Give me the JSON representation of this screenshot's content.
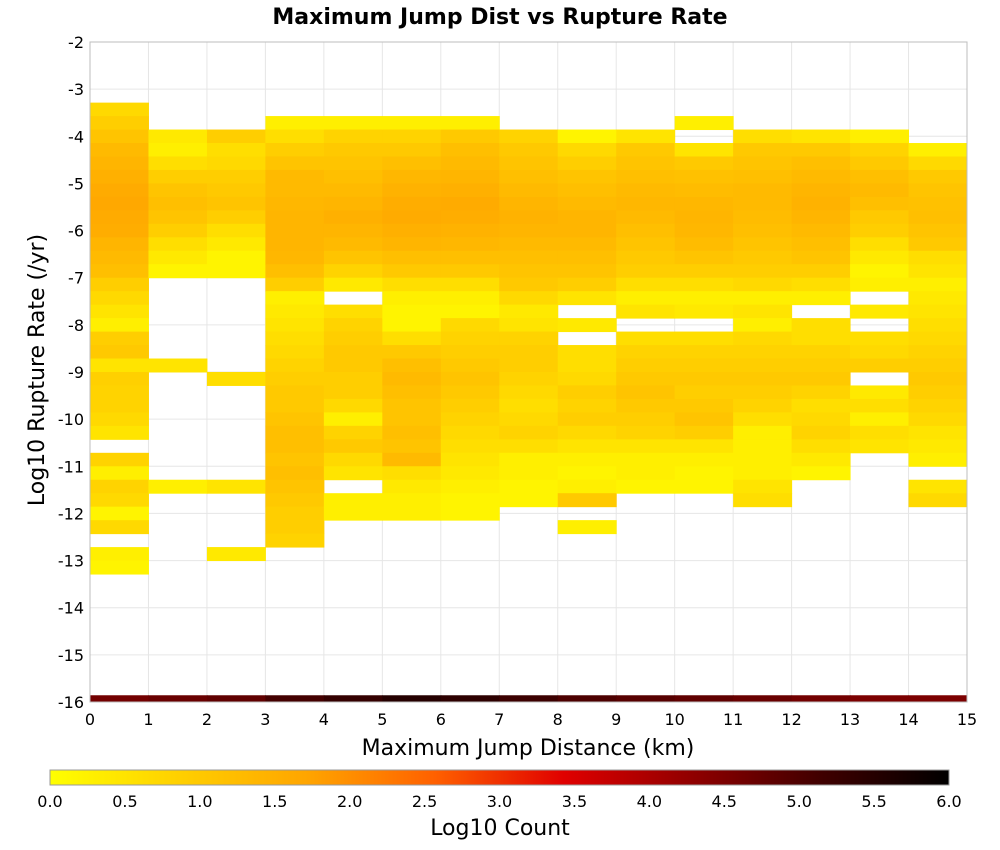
{
  "chart_data": {
    "type": "heatmap",
    "title": "Maximum Jump Dist vs Rupture Rate",
    "xlabel": "Maximum Jump Distance (km)",
    "ylabel": "Log10 Rupture Rate (/yr)",
    "xlim": [
      0,
      15
    ],
    "ylim": [
      -16,
      -2
    ],
    "x_ticks": [
      0,
      1,
      2,
      3,
      4,
      5,
      6,
      7,
      8,
      9,
      10,
      11,
      12,
      13,
      14,
      15
    ],
    "y_ticks": [
      -2,
      -3,
      -4,
      -5,
      -6,
      -7,
      -8,
      -9,
      -10,
      -11,
      -12,
      -13,
      -14,
      -15,
      -16
    ],
    "x_bin_width": 1,
    "y_bin_height": 0.2857,
    "colorbar": {
      "label": "Log10 Count",
      "min": 0.0,
      "max": 6.0,
      "ticks": [
        "0.0",
        "0.5",
        "1.0",
        "1.5",
        "2.0",
        "2.5",
        "3.0",
        "3.5",
        "4.0",
        "4.5",
        "5.0",
        "5.5",
        "6.0"
      ],
      "colors": [
        "#ffff00",
        "#ffd000",
        "#ffa500",
        "#ff6000",
        "#e00000",
        "#900000",
        "#400000",
        "#000000"
      ]
    },
    "columns": [
      {
        "x": 0,
        "from": -3.286,
        "values": [
          0.7,
          0.9,
          1.1,
          1.3,
          1.4,
          1.5,
          1.6,
          1.65,
          1.6,
          1.55,
          1.4,
          1.3,
          1.2,
          0.9,
          0.7,
          0.5,
          0.3,
          0.9,
          1.0,
          0.5,
          0.85,
          0.8,
          0.8,
          0.7,
          0.5,
          0,
          0.8,
          0.3,
          0.8,
          0.7,
          0.2,
          0.7,
          0,
          0.3
        ]
      },
      {
        "x": 0,
        "from": -13.0,
        "values": [
          0.2
        ]
      },
      {
        "x": 1,
        "from": -3.857,
        "values": [
          0.4,
          0.3,
          0.6,
          0.9,
          1.1,
          1.2,
          1.1,
          0.9,
          0.6,
          0.4,
          0.2,
          0,
          0,
          0,
          0,
          0,
          0,
          0.5,
          0,
          0,
          0,
          0,
          0,
          0,
          0,
          0,
          0.3
        ]
      },
      {
        "x": 2,
        "from": -3.857,
        "values": [
          0.9,
          0.6,
          0.7,
          0.9,
          1.0,
          1.1,
          0.9,
          0.6,
          0.4,
          0.2,
          0.2,
          0,
          0,
          0,
          0,
          0,
          0,
          0,
          0.6,
          0,
          0,
          0,
          0,
          0,
          0,
          0,
          0.5,
          0,
          0,
          0,
          0,
          0.4
        ]
      },
      {
        "x": 3,
        "from": -3.571,
        "values": [
          0.3,
          0.6,
          0.9,
          1.1,
          1.3,
          1.3,
          1.35,
          1.4,
          1.4,
          1.4,
          1.35,
          1.2,
          0.9,
          0.3,
          0.4,
          0.5,
          0.6,
          0.7,
          0.8,
          0.9,
          1.0,
          1.0,
          1.1,
          1.2,
          1.2,
          1.1,
          1.2,
          1.1,
          1.0,
          0.9,
          0.9,
          0.8
        ]
      },
      {
        "x": 4,
        "from": -3.571,
        "values": [
          0.3,
          0.8,
          1.0,
          1.1,
          1.2,
          1.3,
          1.4,
          1.5,
          1.4,
          1.3,
          1.1,
          0.8,
          0.4,
          0,
          0.6,
          0.8,
          0.9,
          1.0,
          1.0,
          0.9,
          0.9,
          0.7,
          0.3,
          0.8,
          1.0,
          0.7,
          0.5,
          0,
          0.3,
          0.3
        ]
      },
      {
        "x": 5,
        "from": -3.571,
        "values": [
          0.3,
          0.8,
          1.0,
          1.2,
          1.35,
          1.45,
          1.55,
          1.6,
          1.5,
          1.4,
          1.2,
          1.0,
          0.6,
          0.3,
          0.2,
          0.2,
          0.6,
          1.0,
          1.2,
          1.3,
          1.2,
          1.1,
          1.1,
          1.2,
          1.1,
          1.3,
          0.6,
          0.4,
          0.3,
          0.3
        ]
      },
      {
        "x": 6,
        "from": -3.571,
        "values": [
          0.3,
          1.0,
          1.2,
          1.3,
          1.4,
          1.5,
          1.6,
          1.55,
          1.45,
          1.35,
          1.2,
          1.0,
          0.6,
          0.3,
          0.2,
          0.7,
          0.8,
          0.9,
          1.0,
          1.1,
          1.0,
          0.9,
          0.8,
          0.7,
          0.6,
          0.5,
          0.4,
          0.3,
          0.2,
          0.2
        ]
      },
      {
        "x": 7,
        "from": -3.857,
        "values": [
          0.8,
          1.0,
          1.1,
          1.2,
          1.3,
          1.4,
          1.45,
          1.4,
          1.3,
          1.2,
          1.1,
          1.0,
          0.7,
          0.4,
          0.5,
          0.8,
          0.9,
          0.9,
          0.8,
          0.7,
          0.6,
          0.7,
          0.8,
          0.6,
          0.3,
          0.3,
          0.2,
          0.2
        ]
      },
      {
        "x": 8,
        "from": -3.857,
        "values": [
          0.2,
          0.7,
          0.9,
          1.1,
          1.2,
          1.3,
          1.4,
          1.4,
          1.3,
          1.2,
          1.1,
          0.9,
          0.5,
          0,
          0.4,
          0,
          0.6,
          0.6,
          0.7,
          0.9,
          0.8,
          0.9,
          0.7,
          0.5,
          0.3,
          0.2,
          0.3,
          1.0,
          0,
          0.3
        ]
      },
      {
        "x": 9,
        "from": -3.857,
        "values": [
          0.5,
          1.0,
          1.1,
          1.2,
          1.3,
          1.35,
          1.3,
          1.2,
          1.1,
          1.0,
          0.9,
          0.6,
          0.3,
          0.5,
          0,
          0.6,
          0.8,
          0.9,
          1.0,
          1.1,
          1.0,
          0.9,
          0.8,
          0.5,
          0.3,
          0.3,
          0.2
        ]
      },
      {
        "x": 10,
        "from": -3.571,
        "values": [
          0.3,
          0,
          0.5,
          1.0,
          1.15,
          1.25,
          1.35,
          1.4,
          1.35,
          1.25,
          1.1,
          0.9,
          0.6,
          0.3,
          0.4,
          0,
          0.6,
          0.8,
          0.9,
          1.0,
          0.9,
          1.0,
          1.1,
          0.9,
          0.5,
          0.3,
          0.2,
          0.2
        ]
      },
      {
        "x": 11,
        "from": -3.857,
        "values": [
          0.6,
          1.0,
          1.1,
          1.2,
          1.3,
          1.3,
          1.25,
          1.2,
          1.1,
          1.0,
          0.9,
          0.7,
          0.3,
          0.5,
          0.3,
          0.7,
          0.8,
          0.9,
          1.0,
          0.9,
          0.8,
          0.6,
          0.3,
          0.3,
          0.3,
          0.3,
          0.5,
          0.6
        ]
      },
      {
        "x": 12,
        "from": -3.857,
        "values": [
          0.5,
          1.0,
          1.2,
          1.3,
          1.4,
          1.45,
          1.4,
          1.3,
          1.2,
          1.1,
          0.9,
          0.6,
          0.3,
          0,
          0.6,
          0.6,
          0.8,
          0.9,
          1.0,
          0.8,
          0.6,
          0.7,
          0.8,
          0.6,
          0.4,
          0.2
        ]
      },
      {
        "x": 13,
        "from": -3.857,
        "values": [
          0.3,
          0.8,
          1.0,
          1.2,
          1.3,
          1.2,
          1.0,
          0.9,
          0.6,
          0.4,
          0.2,
          0.3,
          0,
          0.4,
          0,
          0.6,
          0.7,
          0.9,
          0,
          0.4,
          0.6,
          0.3,
          0.6,
          0.5
        ]
      },
      {
        "x": 14,
        "from": -4.143,
        "values": [
          0.3,
          0.7,
          1.0,
          1.1,
          1.15,
          1.2,
          1.1,
          1.0,
          0.6,
          0.5,
          0.3,
          0.4,
          0.5,
          0.6,
          0.7,
          0.8,
          0.9,
          1.0,
          0.9,
          0.8,
          0.7,
          0.5,
          0.4,
          0.3,
          0,
          0.5,
          0.7
        ]
      }
    ],
    "baseline_band": {
      "y_from": -16.0,
      "y_to": -15.857,
      "values": [
        4.6,
        4.7,
        4.8,
        5.1,
        5.3,
        5.5,
        5.4,
        5.2,
        5.0,
        4.9,
        4.8,
        4.7,
        4.6,
        4.5,
        4.5
      ]
    }
  }
}
